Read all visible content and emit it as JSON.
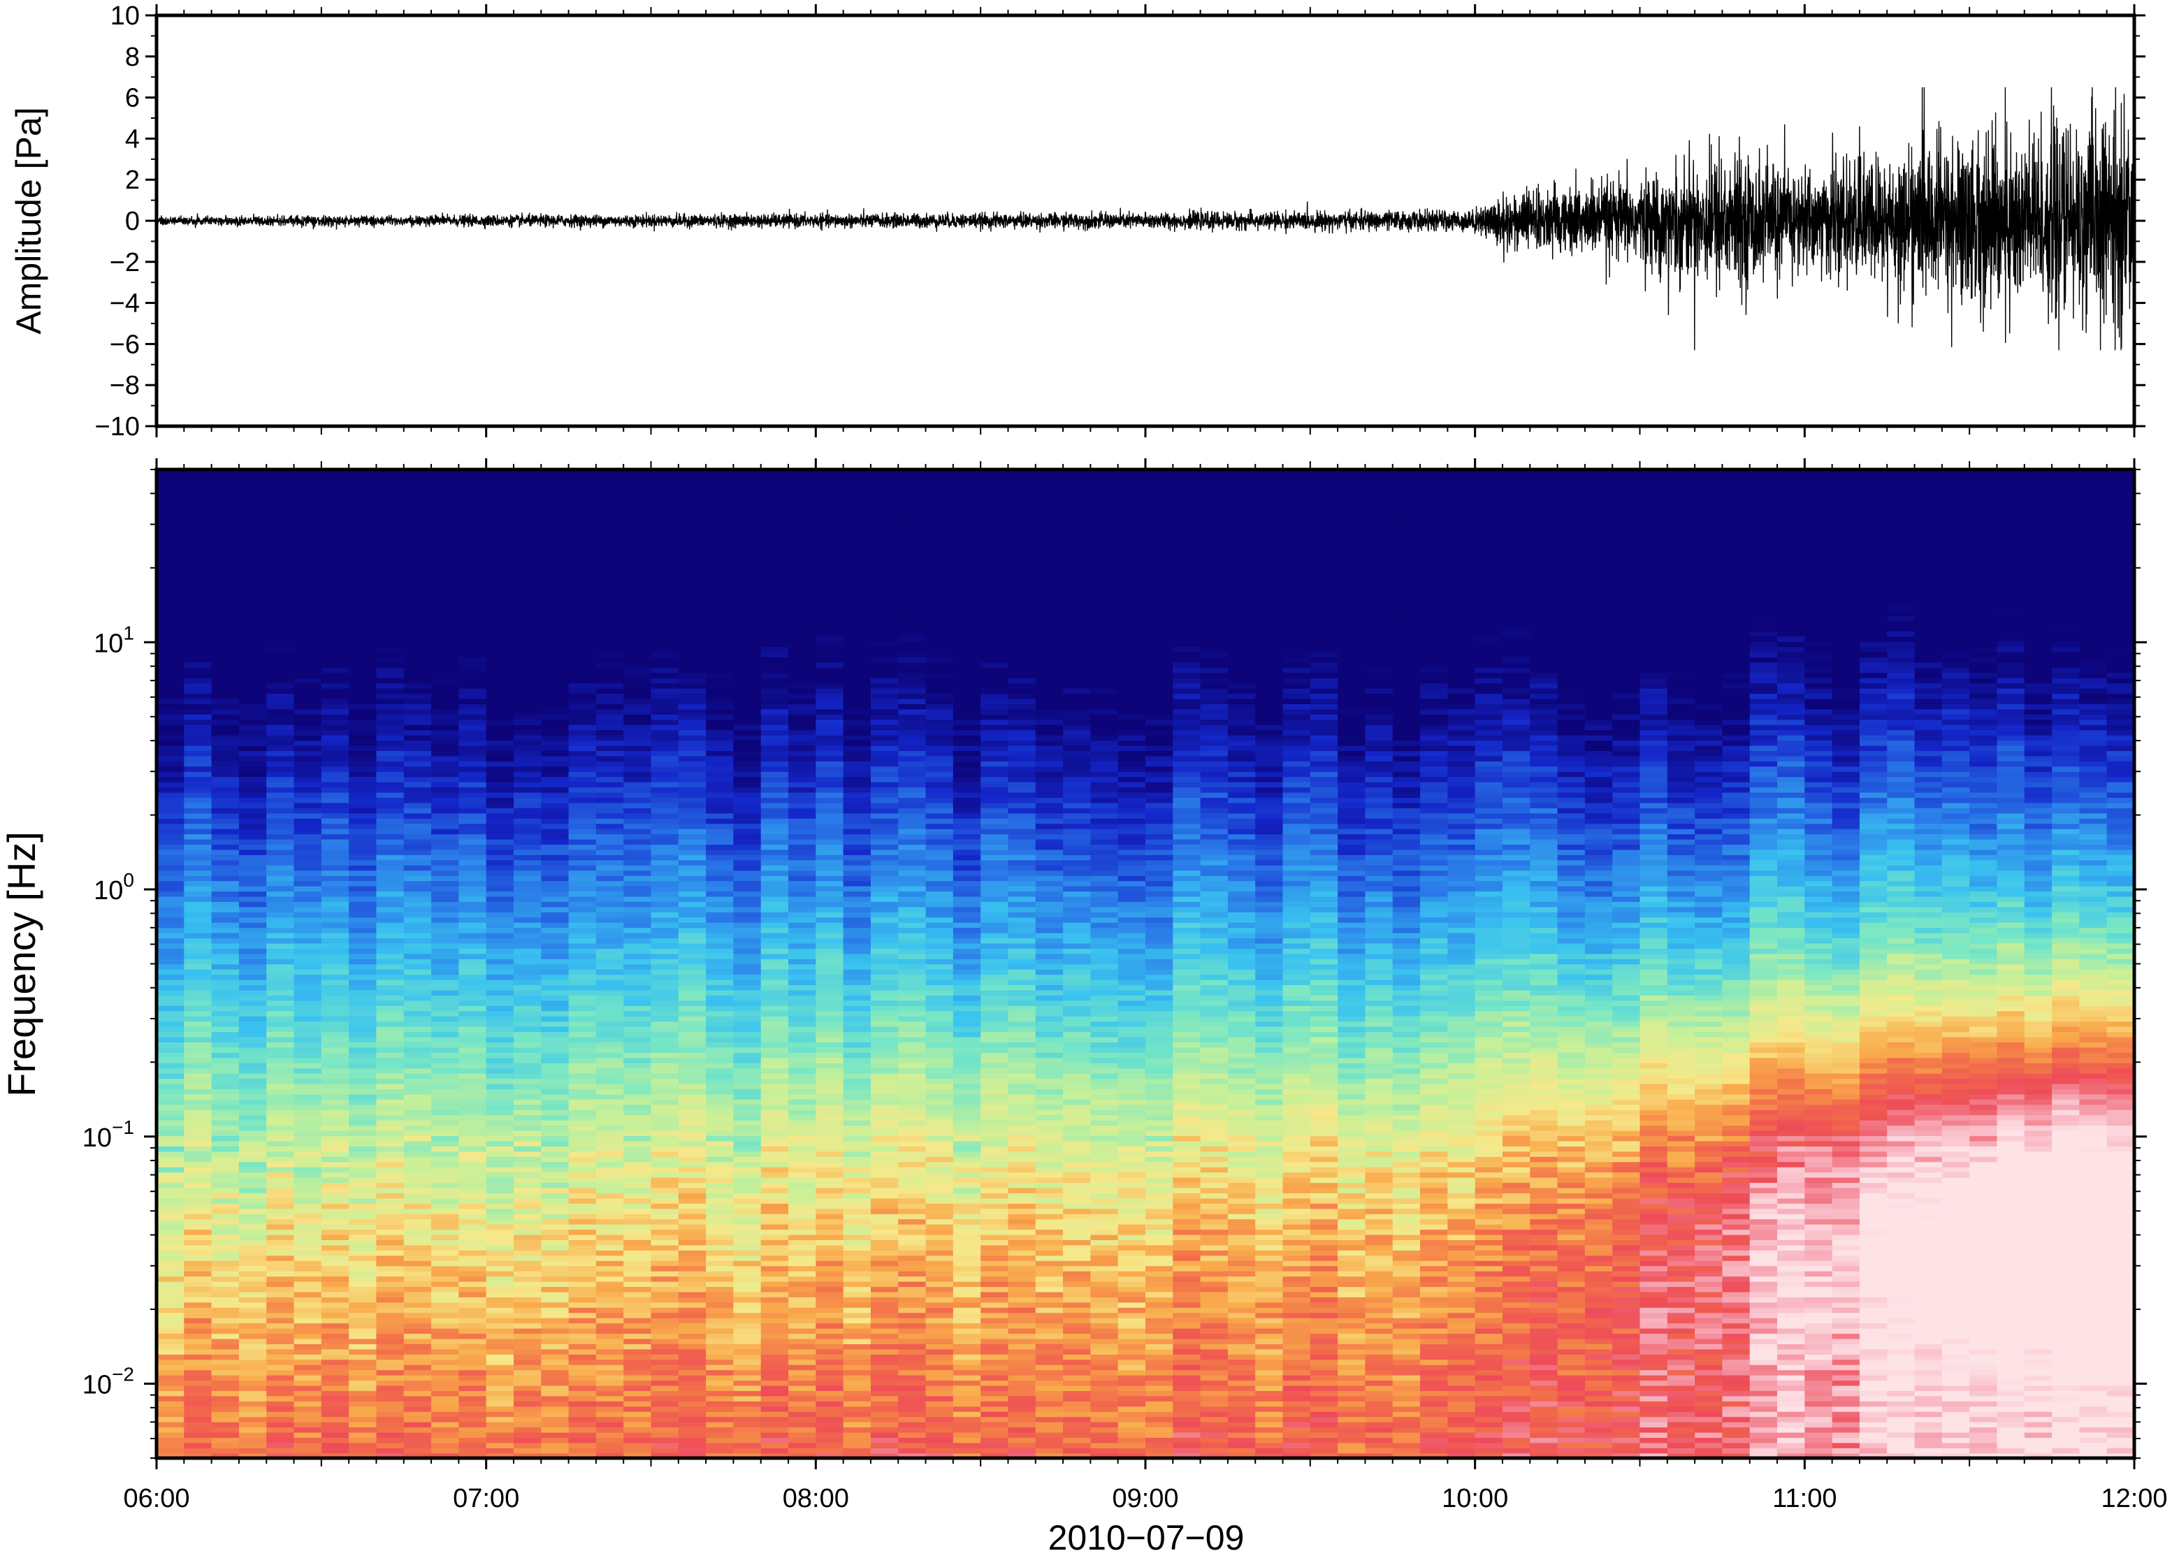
{
  "chart_data": [
    {
      "type": "line",
      "panel": "waveform",
      "ylabel": "Amplitude [Pa]",
      "ylim": [
        -10,
        10
      ],
      "yticks": [
        -10,
        -8,
        -6,
        -4,
        -2,
        0,
        2,
        4,
        6,
        8,
        10
      ],
      "ytick_labels": [
        "−10",
        "−8",
        "−6",
        "−4",
        "−2",
        "0",
        "2",
        "4",
        "6",
        "8",
        "10"
      ],
      "xlim": [
        "06:00",
        "12:00"
      ],
      "grid": false,
      "line_color": "#000000",
      "envelope": {
        "description_of_series": "pressure trace, quiet until 10:00 then increasing amplitude",
        "time": [
          "06:00",
          "07:00",
          "08:00",
          "09:00",
          "09:30",
          "10:00",
          "10:05",
          "10:30",
          "10:45",
          "11:00",
          "11:15",
          "11:30",
          "11:45",
          "12:00"
        ],
        "amplitude": [
          0.2,
          0.25,
          0.3,
          0.35,
          0.4,
          0.45,
          1.2,
          1.8,
          3.0,
          2.2,
          2.8,
          3.8,
          4.0,
          4.5
        ],
        "peak_max": 6.5,
        "peak_min": -6.3
      }
    },
    {
      "type": "heatmap",
      "panel": "spectrogram",
      "ylabel": "Frequency [Hz]",
      "xlabel": "2010−07−09",
      "yscale": "log",
      "ylim": [
        0.005,
        50
      ],
      "yticks": [
        {
          "base": "10",
          "exp": "−2",
          "value": 0.01
        },
        {
          "base": "10",
          "exp": "−1",
          "value": 0.1
        },
        {
          "base": "10",
          "exp": "0",
          "value": 1
        },
        {
          "base": "10",
          "exp": "1",
          "value": 10
        }
      ],
      "x": [
        "06:00",
        "07:00",
        "08:00",
        "09:00",
        "10:00",
        "11:00",
        "12:00"
      ],
      "xlim": [
        "06:00",
        "12:00"
      ],
      "colormap": [
        "#0c0478",
        "#1426c8",
        "#2a7ae8",
        "#39c2f0",
        "#76e6c6",
        "#c8f098",
        "#f6e88a",
        "#f9ab4c",
        "#f26f4a",
        "#ee4b58",
        "#f7a9b6",
        "#fde2e6"
      ],
      "grid": false
    }
  ]
}
